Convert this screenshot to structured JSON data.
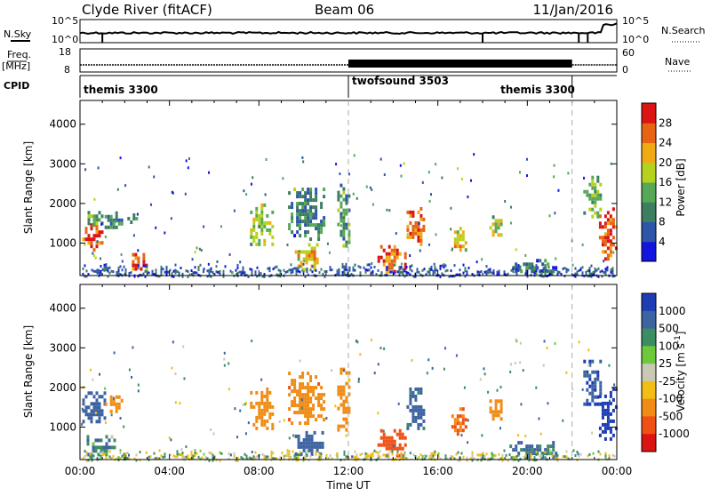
{
  "header": {
    "station": "Clyde River (fitACF)",
    "beam": "Beam 06",
    "date": "11/Jan/2016"
  },
  "top_panels": {
    "nsky_label": "N.Sky",
    "nsearch_label": "N.Search",
    "count_ticks": [
      "10^5",
      "10^0"
    ],
    "freq_label_top": "Freq.",
    "freq_label_unit": "[MHz]",
    "freq_ticks": [
      "18",
      "8"
    ],
    "nave_label": "Nave",
    "nave_ticks": [
      "60",
      "0"
    ],
    "cpid_label": "CPID",
    "cpid_segments": [
      {
        "name": "themis 3300",
        "start_hour": 0,
        "end_hour": 12
      },
      {
        "name": "twofsound 3503",
        "start_hour": 12,
        "end_hour": 22
      },
      {
        "name": "themis 3300",
        "start_hour": 22,
        "end_hour": 24
      }
    ]
  },
  "colors": {
    "power_scale": [
      "#1414e0",
      "#2d55a8",
      "#3d7e60",
      "#55a855",
      "#b4d21e",
      "#f0aa14",
      "#e66414",
      "#dc1414"
    ],
    "velocity_scale": [
      "#1e3cb4",
      "#3c64a0",
      "#3c8c64",
      "#6ec83c",
      "#c8c8b4",
      "#f0be14",
      "#f08c14",
      "#f05014",
      "#dc1414"
    ]
  },
  "chart_data": [
    {
      "type": "heatmap",
      "name": "",
      "xlabel": "",
      "ylabel": "Slant Range [km]",
      "xlim": [
        0,
        24
      ],
      "ylim": [
        180,
        4600
      ],
      "yticks": [
        "1000",
        "2000",
        "3000",
        "4000"
      ],
      "colorbar_label": "Power [dB]",
      "colorbar_ticks": [
        "4",
        "8",
        "12",
        "16",
        "20",
        "24",
        "28"
      ],
      "colorbar_range": [
        0,
        32
      ],
      "regions": [
        {
          "t0": 0.1,
          "t1": 1.0,
          "r0": 800,
          "r1": 1500,
          "v": 28
        },
        {
          "t0": 0.1,
          "t1": 1.1,
          "r0": 1500,
          "r1": 1900,
          "v": 13
        },
        {
          "t0": 1.1,
          "t1": 1.9,
          "r0": 1400,
          "r1": 1800,
          "v": 11
        },
        {
          "t0": 2.0,
          "t1": 2.6,
          "r0": 1500,
          "r1": 1750,
          "v": 9
        },
        {
          "t0": 2.2,
          "t1": 3.0,
          "r0": 350,
          "r1": 750,
          "v": 26
        },
        {
          "t0": 7.6,
          "t1": 8.6,
          "r0": 1000,
          "r1": 2000,
          "v": 16
        },
        {
          "t0": 9.3,
          "t1": 10.9,
          "r0": 1100,
          "r1": 2400,
          "v": 10
        },
        {
          "t0": 9.6,
          "t1": 10.6,
          "r0": 350,
          "r1": 1000,
          "v": 21
        },
        {
          "t0": 11.5,
          "t1": 12.0,
          "r0": 900,
          "r1": 2500,
          "v": 12
        },
        {
          "t0": 13.3,
          "t1": 14.5,
          "r0": 300,
          "r1": 950,
          "v": 26
        },
        {
          "t0": 14.6,
          "t1": 15.4,
          "r0": 1000,
          "r1": 2000,
          "v": 25
        },
        {
          "t0": 16.6,
          "t1": 17.2,
          "r0": 800,
          "r1": 1500,
          "v": 20
        },
        {
          "t0": 18.3,
          "t1": 18.8,
          "r0": 1200,
          "r1": 1700,
          "v": 18
        },
        {
          "t0": 19.2,
          "t1": 21.3,
          "r0": 250,
          "r1": 600,
          "v": 9
        },
        {
          "t0": 23.2,
          "t1": 23.95,
          "r0": 600,
          "r1": 1900,
          "v": 28
        },
        {
          "t0": 22.5,
          "t1": 23.3,
          "r0": 1700,
          "r1": 2700,
          "v": 15
        }
      ],
      "ground_band": {
        "r0": 180,
        "r1": 500,
        "v": 6
      }
    },
    {
      "type": "heatmap",
      "name": "",
      "xlabel": "Time UT",
      "ylabel": "Slant Range [km]",
      "xlim": [
        0,
        24
      ],
      "ylim": [
        180,
        4600
      ],
      "xticks": [
        "00:00",
        "04:00",
        "08:00",
        "12:00",
        "16:00",
        "20:00",
        "00:00"
      ],
      "yticks": [
        "1000",
        "2000",
        "3000",
        "4000"
      ],
      "colorbar_label": "Velocity [m s^-1]",
      "colorbar_ticks": [
        "1000",
        "500",
        "100",
        "25",
        "-25",
        "-100",
        "-500",
        "-1000"
      ],
      "colorbar_range": [
        -1000,
        1000
      ],
      "regions": [
        {
          "t0": 0.1,
          "t1": 1.1,
          "r0": 1100,
          "r1": 1900,
          "v": 400
        },
        {
          "t0": 1.1,
          "t1": 1.9,
          "r0": 1400,
          "r1": 1800,
          "v": -200
        },
        {
          "t0": 0.3,
          "t1": 1.6,
          "r0": 300,
          "r1": 800,
          "v": 100
        },
        {
          "t0": 7.6,
          "t1": 8.6,
          "r0": 1000,
          "r1": 2000,
          "v": -300
        },
        {
          "t0": 9.3,
          "t1": 10.9,
          "r0": 1100,
          "r1": 2400,
          "v": -400
        },
        {
          "t0": 9.6,
          "t1": 10.8,
          "r0": 300,
          "r1": 900,
          "v": 300
        },
        {
          "t0": 11.5,
          "t1": 12.0,
          "r0": 900,
          "r1": 2500,
          "v": -200
        },
        {
          "t0": 13.3,
          "t1": 14.5,
          "r0": 300,
          "r1": 950,
          "v": -600
        },
        {
          "t0": 14.6,
          "t1": 15.4,
          "r0": 1000,
          "r1": 2000,
          "v": 200
        },
        {
          "t0": 16.6,
          "t1": 17.2,
          "r0": 800,
          "r1": 1500,
          "v": -500
        },
        {
          "t0": 18.3,
          "t1": 18.8,
          "r0": 1200,
          "r1": 1700,
          "v": -250
        },
        {
          "t0": 19.2,
          "t1": 21.3,
          "r0": 250,
          "r1": 650,
          "v": 150
        },
        {
          "t0": 23.2,
          "t1": 23.95,
          "r0": 700,
          "r1": 2000,
          "v": 900
        },
        {
          "t0": 22.5,
          "t1": 23.3,
          "r0": 1600,
          "r1": 2700,
          "v": 500
        }
      ],
      "ground_band": {
        "r0": 180,
        "r1": 450,
        "v": 0
      }
    }
  ]
}
